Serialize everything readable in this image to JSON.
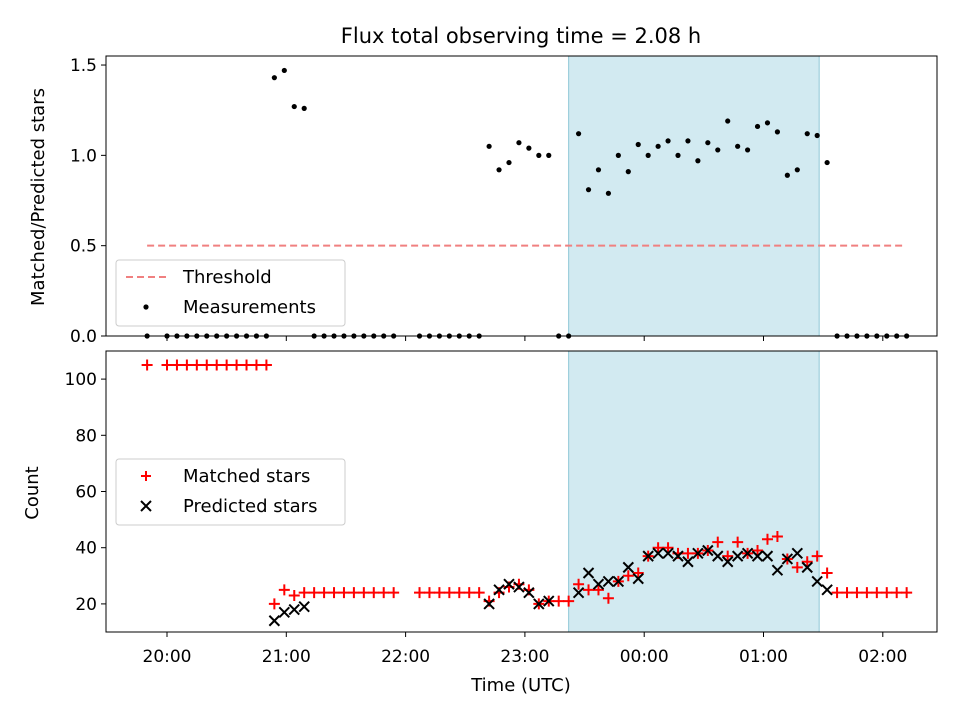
{
  "chart_data": [
    {
      "type": "scatter",
      "title": "Flux total observing time = 2.08 h",
      "xlabel": "",
      "ylabel": "Matched/Predicted stars",
      "ylim": [
        0,
        1.55
      ],
      "yticks": [
        "0.0",
        "0.5",
        "1.0",
        "1.5"
      ],
      "shaded_interval": [
        "23:22",
        "01:28"
      ],
      "threshold": {
        "value": 0.5,
        "from": "19:50",
        "to": "02:10",
        "color": "#f08080"
      },
      "legend": {
        "position": "lower-left",
        "entries": [
          {
            "label": "Threshold",
            "marker": "dashed-line",
            "color": "#f08080"
          },
          {
            "label": "Measurements",
            "marker": "dot",
            "color": "#000000"
          }
        ]
      },
      "series": [
        {
          "color": "#000000",
          "points": [
            [
              "19:50",
              0
            ],
            [
              "20:00",
              0
            ],
            [
              "20:05",
              0
            ],
            [
              "20:10",
              0
            ],
            [
              "20:15",
              0
            ],
            [
              "20:20",
              0
            ],
            [
              "20:25",
              0
            ],
            [
              "20:30",
              0
            ],
            [
              "20:35",
              0
            ],
            [
              "20:40",
              0
            ],
            [
              "20:45",
              0
            ],
            [
              "20:50",
              0
            ],
            [
              "20:54",
              1.43
            ],
            [
              "20:59",
              1.47
            ],
            [
              "21:04",
              1.27
            ],
            [
              "21:09",
              1.26
            ],
            [
              "21:14",
              0
            ],
            [
              "21:19",
              0
            ],
            [
              "21:24",
              0
            ],
            [
              "21:29",
              0
            ],
            [
              "21:34",
              0
            ],
            [
              "21:39",
              0
            ],
            [
              "21:44",
              0
            ],
            [
              "21:49",
              0
            ],
            [
              "21:54",
              0
            ],
            [
              "22:07",
              0
            ],
            [
              "22:12",
              0
            ],
            [
              "22:17",
              0
            ],
            [
              "22:22",
              0
            ],
            [
              "22:27",
              0
            ],
            [
              "22:32",
              0
            ],
            [
              "22:37",
              0
            ],
            [
              "22:42",
              1.05
            ],
            [
              "22:47",
              0.92
            ],
            [
              "22:52",
              0.96
            ],
            [
              "22:57",
              1.07
            ],
            [
              "23:02",
              1.04
            ],
            [
              "23:07",
              1.0
            ],
            [
              "23:12",
              1.0
            ],
            [
              "23:17",
              0
            ],
            [
              "23:22",
              0
            ],
            [
              "23:27",
              1.12
            ],
            [
              "23:32",
              0.81
            ],
            [
              "23:37",
              0.92
            ],
            [
              "23:42",
              0.79
            ],
            [
              "23:47",
              1.0
            ],
            [
              "23:52",
              0.91
            ],
            [
              "23:57",
              1.06
            ],
            [
              "00:02",
              1.0
            ],
            [
              "00:07",
              1.05
            ],
            [
              "00:12",
              1.08
            ],
            [
              "00:17",
              1.0
            ],
            [
              "00:22",
              1.08
            ],
            [
              "00:27",
              0.97
            ],
            [
              "00:32",
              1.07
            ],
            [
              "00:37",
              1.03
            ],
            [
              "00:42",
              1.19
            ],
            [
              "00:47",
              1.05
            ],
            [
              "00:52",
              1.03
            ],
            [
              "00:57",
              1.16
            ],
            [
              "01:02",
              1.18
            ],
            [
              "01:07",
              1.13
            ],
            [
              "01:12",
              0.89
            ],
            [
              "01:17",
              0.92
            ],
            [
              "01:22",
              1.12
            ],
            [
              "01:27",
              1.11
            ],
            [
              "01:32",
              0.96
            ],
            [
              "01:37",
              0
            ],
            [
              "01:42",
              0
            ],
            [
              "01:47",
              0
            ],
            [
              "01:52",
              0
            ],
            [
              "01:57",
              0
            ],
            [
              "02:02",
              0
            ],
            [
              "02:07",
              0
            ],
            [
              "02:12",
              0
            ]
          ]
        }
      ]
    },
    {
      "type": "scatter",
      "title": "",
      "xlabel": "Time (UTC)",
      "ylabel": "Count",
      "ylim": [
        10,
        110
      ],
      "yticks": [
        "20",
        "40",
        "60",
        "80",
        "100"
      ],
      "xticks": [
        "20:00",
        "21:00",
        "22:00",
        "23:00",
        "00:00",
        "01:00",
        "02:00"
      ],
      "shaded_interval": [
        "23:22",
        "01:28"
      ],
      "legend": {
        "position": "center-left",
        "entries": [
          {
            "label": "Matched stars",
            "marker": "plus",
            "color": "#ff0000"
          },
          {
            "label": "Predicted stars",
            "marker": "x",
            "color": "#000000"
          }
        ]
      },
      "series": [
        {
          "name": "Matched stars",
          "color": "#ff0000",
          "points": [
            [
              "19:50",
              105
            ],
            [
              "20:00",
              105
            ],
            [
              "20:05",
              105
            ],
            [
              "20:10",
              105
            ],
            [
              "20:15",
              105
            ],
            [
              "20:20",
              105
            ],
            [
              "20:25",
              105
            ],
            [
              "20:30",
              105
            ],
            [
              "20:35",
              105
            ],
            [
              "20:40",
              105
            ],
            [
              "20:45",
              105
            ],
            [
              "20:50",
              105
            ],
            [
              "20:54",
              20
            ],
            [
              "20:59",
              25
            ],
            [
              "21:04",
              23
            ],
            [
              "21:09",
              24
            ],
            [
              "21:14",
              24
            ],
            [
              "21:19",
              24
            ],
            [
              "21:24",
              24
            ],
            [
              "21:29",
              24
            ],
            [
              "21:34",
              24
            ],
            [
              "21:39",
              24
            ],
            [
              "21:44",
              24
            ],
            [
              "21:49",
              24
            ],
            [
              "21:54",
              24
            ],
            [
              "22:07",
              24
            ],
            [
              "22:12",
              24
            ],
            [
              "22:17",
              24
            ],
            [
              "22:22",
              24
            ],
            [
              "22:27",
              24
            ],
            [
              "22:32",
              24
            ],
            [
              "22:37",
              24
            ],
            [
              "22:42",
              21
            ],
            [
              "22:47",
              24
            ],
            [
              "22:52",
              26
            ],
            [
              "22:57",
              27
            ],
            [
              "23:02",
              25
            ],
            [
              "23:07",
              20
            ],
            [
              "23:12",
              21
            ],
            [
              "23:17",
              21
            ],
            [
              "23:22",
              21
            ],
            [
              "23:27",
              27
            ],
            [
              "23:32",
              25
            ],
            [
              "23:37",
              25
            ],
            [
              "23:42",
              22
            ],
            [
              "23:47",
              28
            ],
            [
              "23:52",
              30
            ],
            [
              "23:57",
              31
            ],
            [
              "00:02",
              37
            ],
            [
              "00:07",
              40
            ],
            [
              "00:12",
              40
            ],
            [
              "00:17",
              38
            ],
            [
              "00:22",
              38
            ],
            [
              "00:27",
              38
            ],
            [
              "00:32",
              39
            ],
            [
              "00:37",
              42
            ],
            [
              "00:42",
              37
            ],
            [
              "00:47",
              42
            ],
            [
              "00:52",
              38
            ],
            [
              "00:57",
              39
            ],
            [
              "01:02",
              43
            ],
            [
              "01:07",
              44
            ],
            [
              "01:12",
              36
            ],
            [
              "01:17",
              33
            ],
            [
              "01:22",
              35
            ],
            [
              "01:27",
              37
            ],
            [
              "01:32",
              31
            ],
            [
              "01:37",
              24
            ],
            [
              "01:42",
              24
            ],
            [
              "01:47",
              24
            ],
            [
              "01:52",
              24
            ],
            [
              "01:57",
              24
            ],
            [
              "02:02",
              24
            ],
            [
              "02:07",
              24
            ],
            [
              "02:12",
              24
            ]
          ]
        },
        {
          "name": "Predicted stars",
          "color": "#000000",
          "points": [
            [
              "20:54",
              14
            ],
            [
              "20:59",
              17
            ],
            [
              "21:04",
              18
            ],
            [
              "21:09",
              19
            ],
            [
              "22:42",
              20
            ],
            [
              "22:47",
              25
            ],
            [
              "22:52",
              27
            ],
            [
              "22:57",
              26
            ],
            [
              "23:02",
              24
            ],
            [
              "23:07",
              20
            ],
            [
              "23:12",
              21
            ],
            [
              "23:27",
              24
            ],
            [
              "23:32",
              31
            ],
            [
              "23:37",
              27
            ],
            [
              "23:42",
              28
            ],
            [
              "23:47",
              28
            ],
            [
              "23:52",
              33
            ],
            [
              "23:57",
              29
            ],
            [
              "00:02",
              37
            ],
            [
              "00:07",
              38
            ],
            [
              "00:12",
              38
            ],
            [
              "00:17",
              37
            ],
            [
              "00:22",
              35
            ],
            [
              "00:27",
              38
            ],
            [
              "00:32",
              39
            ],
            [
              "00:37",
              37
            ],
            [
              "00:42",
              35
            ],
            [
              "00:47",
              37
            ],
            [
              "00:52",
              38
            ],
            [
              "00:57",
              37
            ],
            [
              "01:02",
              37
            ],
            [
              "01:07",
              32
            ],
            [
              "01:12",
              36
            ],
            [
              "01:17",
              38
            ],
            [
              "01:22",
              33
            ],
            [
              "01:27",
              28
            ],
            [
              "01:32",
              25
            ]
          ]
        }
      ]
    }
  ]
}
